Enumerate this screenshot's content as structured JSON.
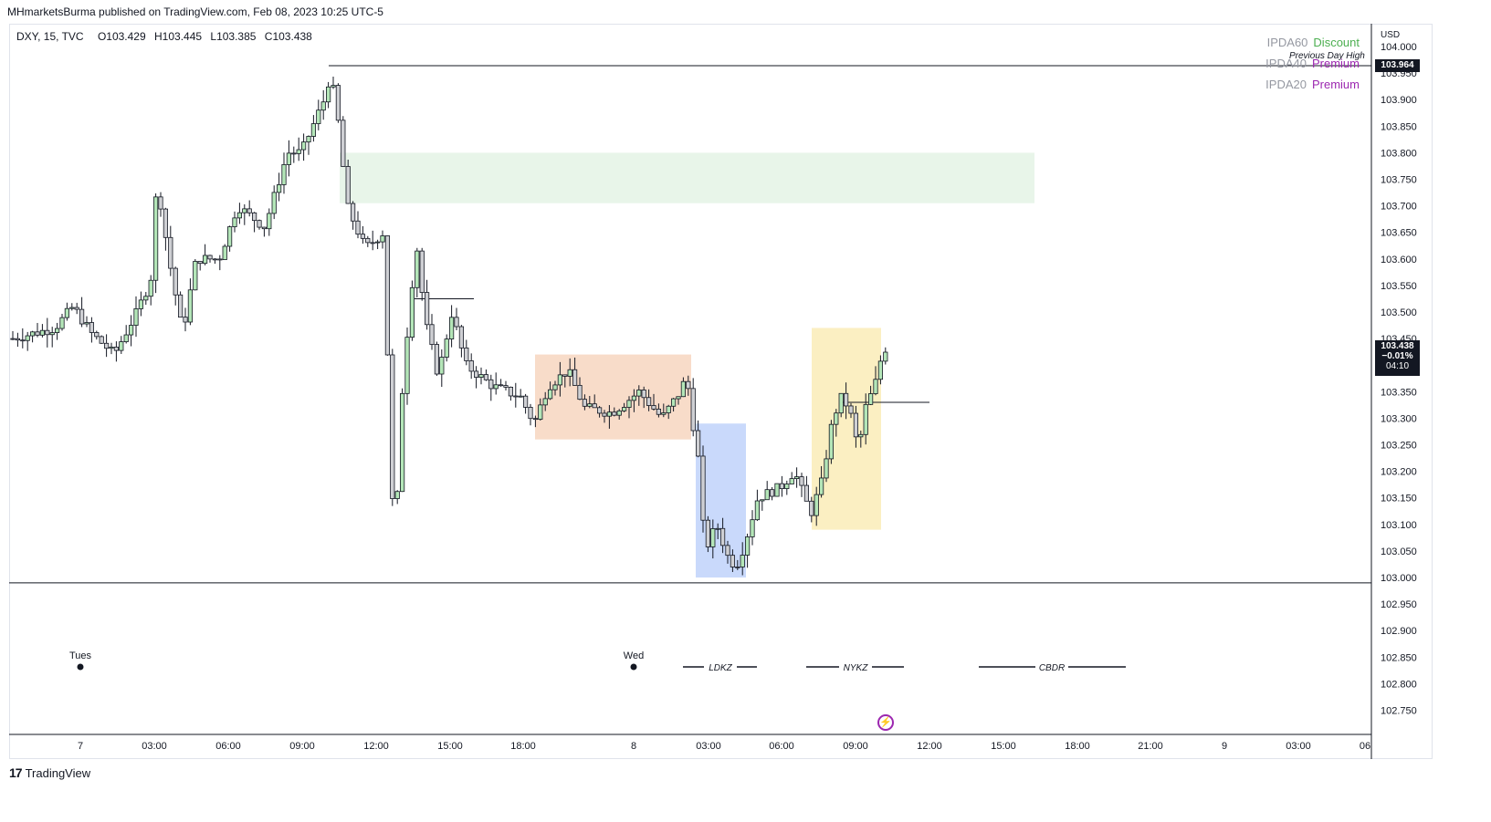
{
  "header": {
    "publisher_line": "MHmarketsBurma published on TradingView.com, Feb 08, 2023 10:25 UTC-5"
  },
  "legend": {
    "symbol": "DXY, 15, TVC",
    "open": "O103.429",
    "high": "H103.445",
    "low": "L103.385",
    "close": "C103.438"
  },
  "ipda": [
    {
      "label": "IPDA60",
      "state": "Discount",
      "color": "#4caf50"
    },
    {
      "label": "IPDA40",
      "state": "Premium",
      "color": "#9c27b0"
    },
    {
      "label": "IPDA20",
      "state": "Premium",
      "color": "#9c27b0"
    }
  ],
  "previous_day_high": {
    "text": "Previous Day High",
    "price_label": "103.964"
  },
  "current_price": {
    "price": "103.438",
    "change": "−0.01%",
    "countdown": "04:10"
  },
  "axis": {
    "currency": "USD",
    "y_ticks": [
      "104.000",
      "103.950",
      "103.900",
      "103.850",
      "103.800",
      "103.750",
      "103.700",
      "103.650",
      "103.600",
      "103.550",
      "103.500",
      "103.450",
      "103.400",
      "103.350",
      "103.300",
      "103.250",
      "103.200",
      "103.150",
      "103.100",
      "103.050",
      "103.000",
      "102.950",
      "102.900",
      "102.850",
      "102.800",
      "102.750"
    ],
    "x_ticks": [
      "7",
      "03:00",
      "06:00",
      "09:00",
      "12:00",
      "15:00",
      "18:00",
      "8",
      "03:00",
      "06:00",
      "09:00",
      "12:00",
      "15:00",
      "18:00",
      "21:00",
      "9",
      "03:00",
      "06"
    ]
  },
  "markers": {
    "day_labels": [
      "Tues",
      "Wed"
    ],
    "sessions": [
      "LDKZ",
      "NYKZ",
      "CBDR"
    ]
  },
  "footer": {
    "brand": "TradingView"
  },
  "chart_data": {
    "type": "candlestick",
    "symbol": "DXY",
    "interval": "15",
    "ylim": [
      102.72,
      104.02
    ],
    "ohlc_approx": [
      [
        103.45,
        103.47,
        103.43,
        103.44
      ],
      [
        103.44,
        103.46,
        103.42,
        103.45
      ],
      [
        103.45,
        103.46,
        103.42,
        103.43
      ],
      [
        103.43,
        103.47,
        103.42,
        103.46
      ],
      [
        103.46,
        103.48,
        103.43,
        103.44
      ],
      [
        103.44,
        103.46,
        103.41,
        103.45
      ],
      [
        103.45,
        103.46,
        103.43,
        103.44
      ],
      [
        103.44,
        103.46,
        103.41,
        103.43
      ],
      [
        103.43,
        103.47,
        103.42,
        103.46
      ],
      [
        103.46,
        103.5,
        103.44,
        103.49
      ],
      [
        103.49,
        103.52,
        103.46,
        103.5
      ],
      [
        103.5,
        103.55,
        103.48,
        103.52
      ],
      [
        103.52,
        103.54,
        103.49,
        103.51
      ],
      [
        103.51,
        103.53,
        103.48,
        103.49
      ],
      [
        103.49,
        103.5,
        103.44,
        103.46
      ],
      [
        103.46,
        103.47,
        103.43,
        103.44
      ],
      [
        103.44,
        103.48,
        103.41,
        103.42
      ],
      [
        103.42,
        103.45,
        103.39,
        103.41
      ],
      [
        103.41,
        103.43,
        103.4,
        103.43
      ],
      [
        103.43,
        103.44,
        103.4,
        103.42
      ],
      [
        103.42,
        103.47,
        103.41,
        103.46
      ],
      [
        103.46,
        103.52,
        103.44,
        103.5
      ],
      [
        103.5,
        103.53,
        103.47,
        103.49
      ],
      [
        103.49,
        103.54,
        103.47,
        103.52
      ],
      [
        103.52,
        103.58,
        103.51,
        103.56
      ],
      [
        103.56,
        103.8,
        103.55,
        103.75
      ],
      [
        103.75,
        103.76,
        103.62,
        103.64
      ],
      [
        103.64,
        103.66,
        103.58,
        103.6
      ],
      [
        103.6,
        103.64,
        103.52,
        103.58
      ],
      [
        103.58,
        103.6,
        103.47,
        103.5
      ],
      [
        103.5,
        103.52,
        103.41,
        103.48
      ],
      [
        103.48,
        103.56,
        103.46,
        103.54
      ],
      [
        103.54,
        103.62,
        103.52,
        103.6
      ],
      [
        103.6,
        103.65,
        103.57,
        103.63
      ],
      [
        103.63,
        103.66,
        103.56,
        103.58
      ],
      [
        103.58,
        103.62,
        103.55,
        103.6
      ],
      [
        103.6,
        103.66,
        103.58,
        103.64
      ],
      [
        103.64,
        103.7,
        103.62,
        103.68
      ],
      [
        103.68,
        103.76,
        103.66,
        103.72
      ],
      [
        103.72,
        103.77,
        103.69,
        103.71
      ],
      [
        103.71,
        103.74,
        103.66,
        103.7
      ],
      [
        103.7,
        103.72,
        103.64,
        103.66
      ],
      [
        103.66,
        103.72,
        103.64,
        103.7
      ],
      [
        103.7,
        103.76,
        103.68,
        103.74
      ],
      [
        103.74,
        103.78,
        103.7,
        103.72
      ],
      [
        103.72,
        103.8,
        103.7,
        103.78
      ],
      [
        103.78,
        103.84,
        103.76,
        103.83
      ],
      [
        103.83,
        103.86,
        103.78,
        103.8
      ],
      [
        103.8,
        103.82,
        103.75,
        103.77
      ],
      [
        103.77,
        103.82,
        103.75,
        103.8
      ],
      [
        103.8,
        103.84,
        103.78,
        103.82
      ],
      [
        103.82,
        103.87,
        103.8,
        103.86
      ],
      [
        103.86,
        103.96,
        103.84,
        103.94
      ],
      [
        103.94,
        103.964,
        103.9,
        103.92
      ],
      [
        103.92,
        103.93,
        103.82,
        103.84
      ],
      [
        103.84,
        103.86,
        103.68,
        103.72
      ],
      [
        103.72,
        103.74,
        103.62,
        103.66
      ],
      [
        103.66,
        103.7,
        103.6,
        103.64
      ],
      [
        103.64,
        103.7,
        103.6,
        103.68
      ],
      [
        103.68,
        103.69,
        103.6,
        103.62
      ],
      [
        103.62,
        103.66,
        103.6,
        103.64
      ],
      [
        103.64,
        103.72,
        103.5,
        103.52
      ],
      [
        103.52,
        103.54,
        103.01,
        103.03
      ],
      [
        103.03,
        103.36,
        103.02,
        103.34
      ],
      [
        103.34,
        103.52,
        103.3,
        103.5
      ],
      [
        103.5,
        103.75,
        103.47,
        103.63
      ],
      [
        103.63,
        103.64,
        103.46,
        103.48
      ],
      [
        103.48,
        103.52,
        103.42,
        103.46
      ],
      [
        103.46,
        103.48,
        103.36,
        103.38
      ],
      [
        103.38,
        103.45,
        103.36,
        103.43
      ],
      [
        103.43,
        103.53,
        103.41,
        103.5
      ],
      [
        103.5,
        103.52,
        103.41,
        103.43
      ],
      [
        103.43,
        103.44,
        103.35,
        103.38
      ],
      [
        103.38,
        103.4,
        103.36,
        103.37
      ],
      [
        103.37,
        103.39,
        103.34,
        103.36
      ],
      [
        103.36,
        103.38,
        103.33,
        103.35
      ]
    ],
    "zones": [
      {
        "name": "supply-zone",
        "price_range": [
          103.705,
          103.8
        ],
        "color": "#e8f5e9"
      },
      {
        "name": "consolidation-zone",
        "price_range": [
          103.26,
          103.42
        ],
        "color": "#f8dcc9"
      },
      {
        "name": "london-killzone-box",
        "price_range": [
          103.0,
          103.29
        ],
        "color": "#c9d9fb"
      },
      {
        "name": "newyork-killzone-box",
        "price_range": [
          103.09,
          103.47
        ],
        "color": "#fbefc2"
      }
    ],
    "levels": [
      {
        "name": "previous-day-high",
        "price": 103.964
      },
      {
        "name": "session-low",
        "price": 102.99
      },
      {
        "name": "equilibrium-line-1",
        "price": 103.525
      },
      {
        "name": "equilibrium-line-2",
        "price": 103.33
      }
    ]
  }
}
